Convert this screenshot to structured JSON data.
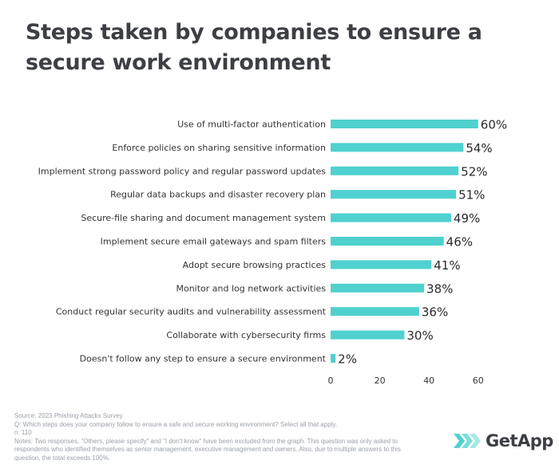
{
  "title": "Steps taken by companies to ensure a secure work environment",
  "chart_data": {
    "type": "bar",
    "orientation": "horizontal",
    "categories": [
      "Use of multi-factor authentication",
      "Enforce policies on sharing sensitive information",
      "Implement strong password policy and regular password updates",
      "Regular data backups and disaster recovery plan",
      "Secure-file sharing and document management system",
      "Implement secure email gateways and spam filters",
      "Adopt secure browsing practices",
      "Monitor and log network activities",
      "Conduct regular security audits and vulnerability assessment",
      "Collaborate with cybersecurity firms",
      "Doesn't follow any step to ensure a secure environment"
    ],
    "values": [
      60,
      54,
      52,
      51,
      49,
      46,
      41,
      38,
      36,
      30,
      2
    ],
    "value_labels": [
      "60%",
      "54%",
      "52%",
      "51%",
      "49%",
      "46%",
      "41%",
      "38%",
      "36%",
      "30%",
      "2%"
    ],
    "xticks": [
      "0",
      "20",
      "40",
      "60"
    ],
    "xlim": [
      0,
      75
    ],
    "xlabel": "",
    "ylabel": "",
    "grid": false,
    "colors": {
      "bar": "#4fd1cf",
      "text": "#333333",
      "axis": "#cccccc"
    }
  },
  "footer": {
    "source": "Source: 2023 Phishing Attacks Survey",
    "question": "Q: Which steps does your company follow to ensure a safe and secure working environment? Select all that apply.",
    "n": "n: 110",
    "notes": "Notes: Two responses, \"Others, please specify\" and \"I don't know\" have been excluded from the graph. This question was only asked to respondents who identified themselves as senior management, executive management and owners. Also, due to multiple answers to this question, the total exceeds 100%."
  },
  "logo": {
    "text": "GetApp",
    "color": "#4fd1cf"
  }
}
